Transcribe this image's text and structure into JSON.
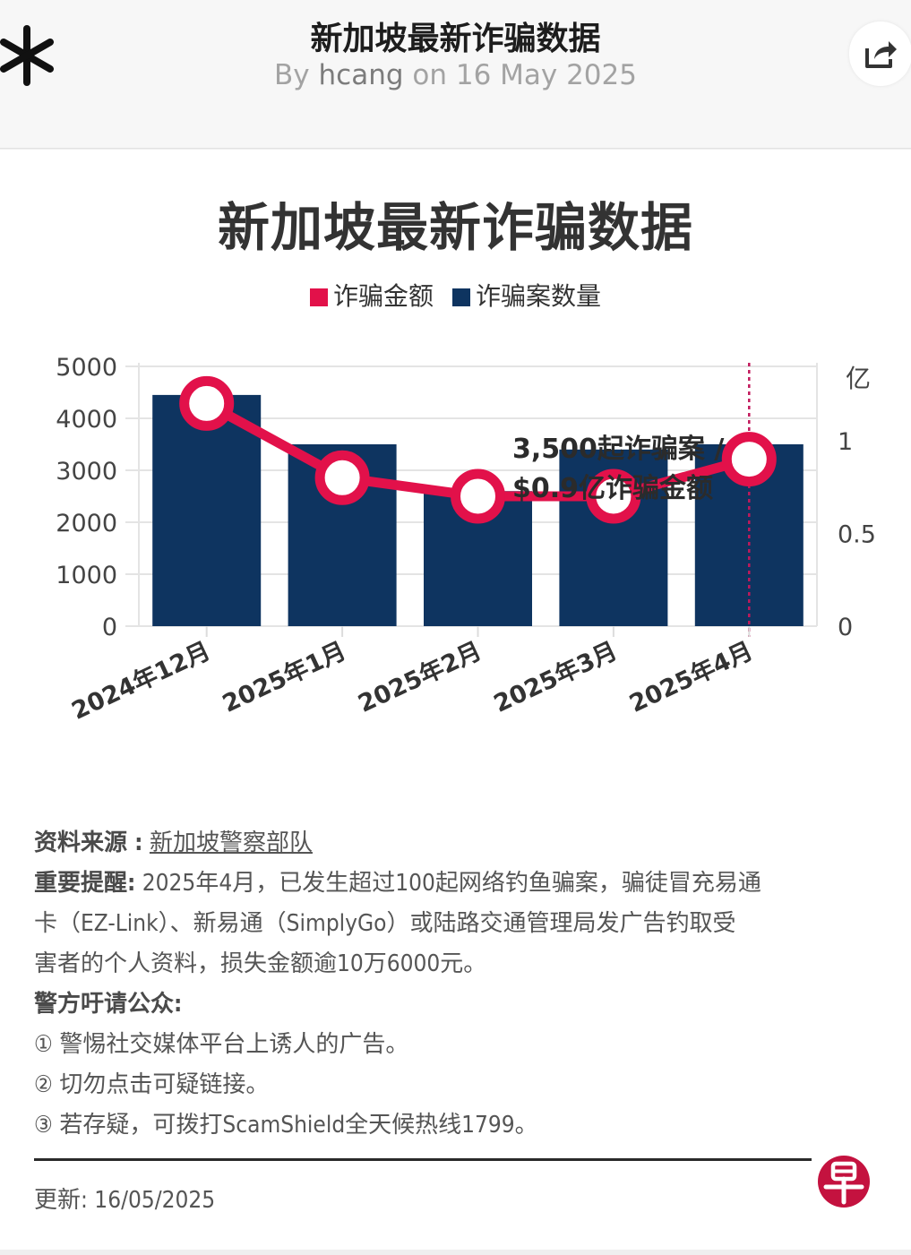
{
  "header": {
    "title": "新加坡最新诈骗数据",
    "byline_prefix": "By",
    "author": "hcang",
    "byline_mid": "on 16 May 2025"
  },
  "icons": {
    "logo": "asterisk-logo-icon",
    "share": "share-icon",
    "publisher": "zaobao-logo-icon"
  },
  "chart_data": {
    "type": "bar",
    "title": "新加坡最新诈骗数据",
    "categories": [
      "2024年12月",
      "2025年1月",
      "2025年2月",
      "2025年3月",
      "2025年4月"
    ],
    "series": [
      {
        "name": "诈骗案数量",
        "type": "bar",
        "axis": "left",
        "color": "#0e3460",
        "values": [
          4450,
          3500,
          2600,
          3400,
          3500
        ]
      },
      {
        "name": "诈骗金额",
        "type": "line",
        "axis": "right",
        "color": "#e2114a",
        "values": [
          1.2,
          0.8,
          0.7,
          0.7,
          0.9
        ]
      }
    ],
    "y_left": {
      "ticks": [
        "5000",
        "4000",
        "3000",
        "2000",
        "1000",
        "0"
      ],
      "range": [
        0,
        5000
      ]
    },
    "y_right": {
      "unit": "亿",
      "ticks": [
        "1",
        "0.5",
        "0"
      ],
      "range": [
        0,
        1.4
      ]
    },
    "annotation": {
      "line1": "3,500起诈骗案 /",
      "line2": "$0.9亿诈骗金额",
      "category": "2025年4月"
    },
    "legend": "top-center",
    "grid": true
  },
  "notes": {
    "source_label": "资料来源 :",
    "source_text": "新加坡警察部队",
    "reminder_label": "重要提醒:",
    "reminder_line1": "2025年4月，已发生超过100起网络钓鱼骗案，骗徒冒充易通",
    "reminder_line2": "卡（EZ-Link）、新易通（SimplyGo）或陆路交通管理局发广告钓取受",
    "reminder_line3": "害者的个人资料，损失金额逾10万6000元。",
    "police_label": "警方吁请公众:",
    "item1": "① 警惕社交媒体平台上诱人的广告。",
    "item2": "② 切勿点击可疑链接。",
    "item3": "③ 若存疑，可拨打ScamShield全天候热线1799。"
  },
  "footer": {
    "updated": "更新: 16/05/2025"
  }
}
